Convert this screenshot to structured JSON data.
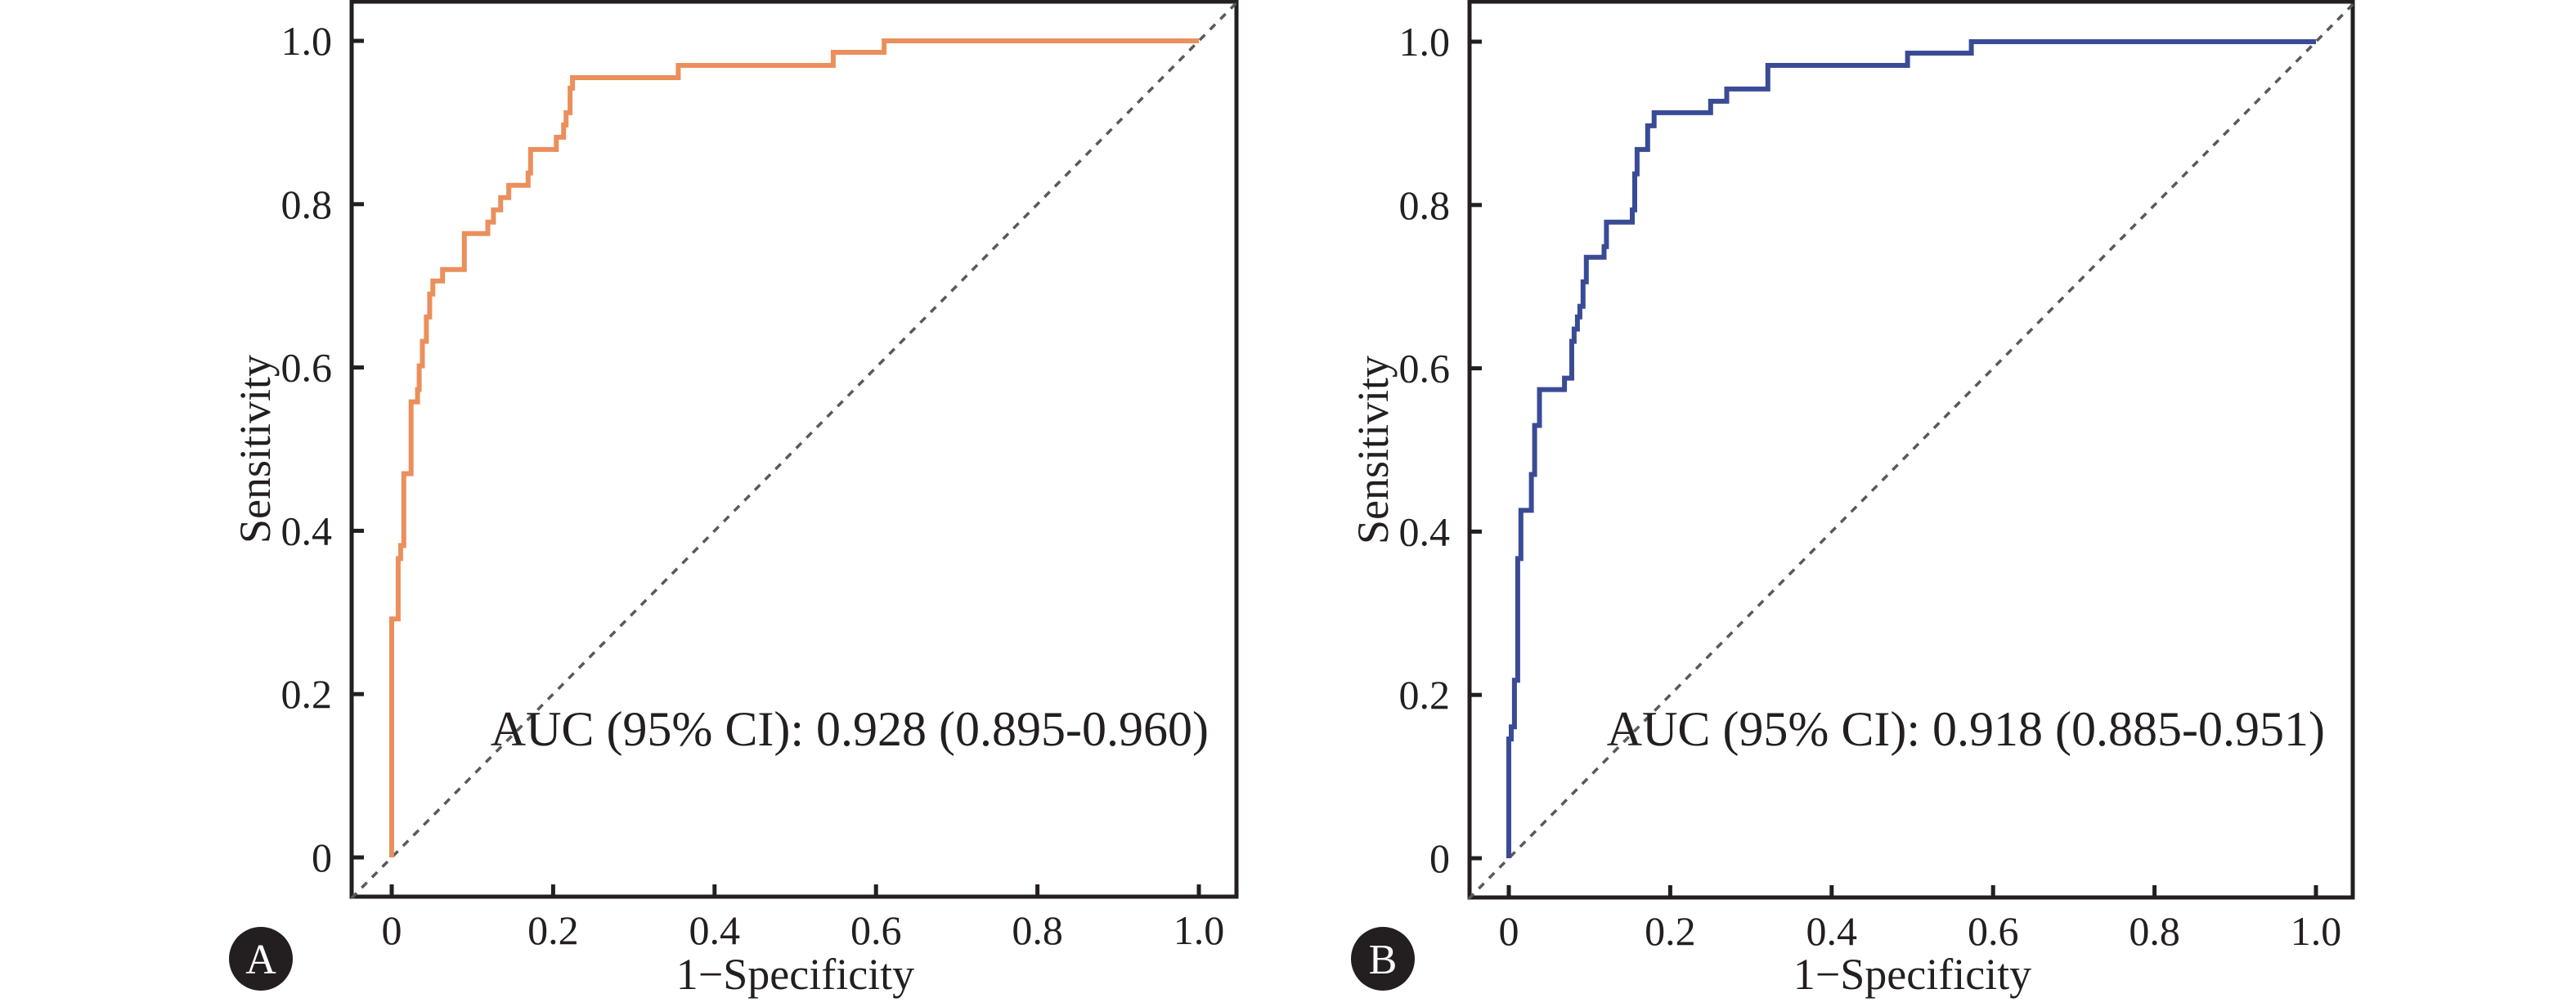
{
  "chart_data": [
    {
      "type": "line",
      "panel_label": "A",
      "title": "",
      "xlabel": "1−Specificity",
      "ylabel": "Sensitivity",
      "xlim": [
        -0.05,
        1.05
      ],
      "ylim": [
        -0.05,
        1.05
      ],
      "xticks": [
        0,
        0.2,
        0.4,
        0.6,
        0.8,
        1.0
      ],
      "xtick_labels": [
        "0",
        "0.2",
        "0.4",
        "0.6",
        "0.8",
        "1.0"
      ],
      "yticks": [
        0,
        0.2,
        0.4,
        0.6,
        0.8,
        1.0
      ],
      "ytick_labels": [
        "0",
        "0.2",
        "0.4",
        "0.6",
        "0.8",
        "1.0"
      ],
      "grid": false,
      "annotation": "AUC (95% CI): 0.928 (0.895-0.960)",
      "reference_line": {
        "name": "chance",
        "x": [
          0,
          1
        ],
        "y": [
          0,
          1
        ],
        "style": "dashed",
        "color": "#58595b"
      },
      "series": [
        {
          "name": "ROC curve",
          "color": "#eb8f5c",
          "step": true,
          "x": [
            0.0,
            0.0,
            0.008,
            0.008,
            0.011,
            0.011,
            0.015,
            0.015,
            0.024,
            0.024,
            0.032,
            0.032,
            0.034,
            0.034,
            0.038,
            0.038,
            0.043,
            0.043,
            0.047,
            0.047,
            0.051,
            0.051,
            0.063,
            0.063,
            0.09,
            0.09,
            0.119,
            0.119,
            0.126,
            0.126,
            0.135,
            0.135,
            0.145,
            0.145,
            0.169,
            0.169,
            0.172,
            0.172,
            0.204,
            0.204,
            0.213,
            0.213,
            0.216,
            0.216,
            0.221,
            0.221,
            0.224,
            0.224,
            0.241,
            0.241,
            0.355,
            0.355,
            0.547,
            0.547,
            0.61,
            0.61,
            1.0
          ],
          "y": [
            0.0,
            0.292,
            0.292,
            0.366,
            0.366,
            0.382,
            0.382,
            0.47,
            0.47,
            0.558,
            0.558,
            0.573,
            0.573,
            0.602,
            0.602,
            0.632,
            0.632,
            0.662,
            0.662,
            0.69,
            0.69,
            0.706,
            0.706,
            0.72,
            0.72,
            0.764,
            0.764,
            0.778,
            0.778,
            0.793,
            0.793,
            0.808,
            0.808,
            0.823,
            0.823,
            0.838,
            0.838,
            0.867,
            0.867,
            0.882,
            0.882,
            0.897,
            0.897,
            0.912,
            0.912,
            0.942,
            0.942,
            0.955,
            0.955,
            0.955,
            0.955,
            0.97,
            0.97,
            0.986,
            0.986,
            1.0,
            1.0
          ]
        }
      ]
    },
    {
      "type": "line",
      "panel_label": "B",
      "title": "",
      "xlabel": "1−Specificity",
      "ylabel": "Sensitivity",
      "xlim": [
        -0.05,
        1.05
      ],
      "ylim": [
        -0.05,
        1.05
      ],
      "xticks": [
        0,
        0.2,
        0.4,
        0.6,
        0.8,
        1.0
      ],
      "xtick_labels": [
        "0",
        "0.2",
        "0.4",
        "0.6",
        "0.8",
        "1.0"
      ],
      "yticks": [
        0,
        0.2,
        0.4,
        0.6,
        0.8,
        1.0
      ],
      "ytick_labels": [
        "0",
        "0.2",
        "0.4",
        "0.6",
        "0.8",
        "1.0"
      ],
      "grid": false,
      "annotation": "AUC (95% CI): 0.918 (0.885-0.951)",
      "reference_line": {
        "name": "chance",
        "x": [
          0,
          1
        ],
        "y": [
          0,
          1
        ],
        "style": "dashed",
        "color": "#58595b"
      },
      "series": [
        {
          "name": "ROC curve",
          "color": "#3a4b96",
          "step": true,
          "x": [
            0.0,
            0.0,
            0.003,
            0.003,
            0.007,
            0.007,
            0.011,
            0.011,
            0.015,
            0.015,
            0.028,
            0.028,
            0.032,
            0.032,
            0.038,
            0.038,
            0.069,
            0.069,
            0.078,
            0.078,
            0.081,
            0.081,
            0.085,
            0.085,
            0.088,
            0.088,
            0.092,
            0.092,
            0.096,
            0.096,
            0.118,
            0.118,
            0.121,
            0.121,
            0.153,
            0.153,
            0.156,
            0.156,
            0.159,
            0.159,
            0.172,
            0.172,
            0.18,
            0.18,
            0.25,
            0.25,
            0.27,
            0.27,
            0.321,
            0.321,
            0.494,
            0.494,
            0.573,
            0.573,
            1.0
          ],
          "y": [
            0.0,
            0.146,
            0.146,
            0.161,
            0.161,
            0.218,
            0.218,
            0.367,
            0.367,
            0.426,
            0.426,
            0.47,
            0.47,
            0.53,
            0.53,
            0.574,
            0.574,
            0.588,
            0.588,
            0.633,
            0.633,
            0.648,
            0.648,
            0.663,
            0.663,
            0.676,
            0.676,
            0.706,
            0.706,
            0.736,
            0.736,
            0.749,
            0.749,
            0.779,
            0.779,
            0.794,
            0.794,
            0.838,
            0.838,
            0.868,
            0.868,
            0.897,
            0.897,
            0.913,
            0.913,
            0.927,
            0.927,
            0.942,
            0.942,
            0.971,
            0.971,
            0.986,
            0.986,
            1.0,
            1.0
          ]
        }
      ]
    }
  ]
}
